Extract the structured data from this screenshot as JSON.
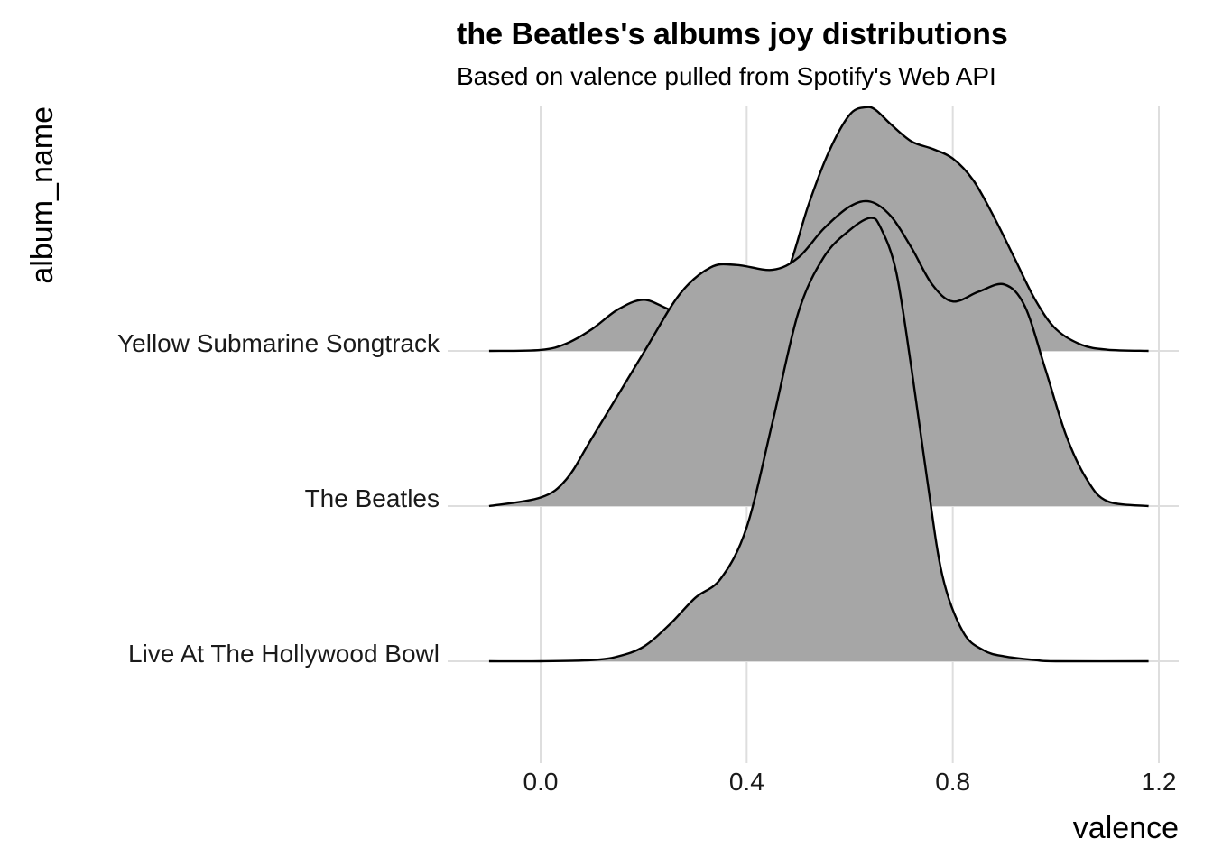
{
  "chart_data": {
    "type": "ridgeline",
    "title": "the Beatles's albums joy distributions",
    "subtitle": "Based on valence pulled from Spotify's Web API",
    "xlabel": "valence",
    "ylabel": "album_name",
    "xlim": [
      -0.1,
      1.18
    ],
    "x_ticks": [
      0.0,
      0.4,
      0.8,
      1.2
    ],
    "x_tick_labels": [
      "0.0",
      "0.4",
      "0.8",
      "1.2"
    ],
    "grid": true,
    "legend": "none",
    "fill_color": "#a6a6a6",
    "line_color": "#000000",
    "grid_color": "#dedede",
    "categories": [
      "Yellow Submarine Songtrack",
      "The Beatles",
      "Live At The Hollywood Bowl"
    ],
    "series": [
      {
        "name": "Yellow Submarine Songtrack",
        "x": [
          -0.1,
          0.0,
          0.05,
          0.1,
          0.15,
          0.2,
          0.25,
          0.3,
          0.35,
          0.4,
          0.45,
          0.48,
          0.52,
          0.56,
          0.6,
          0.63,
          0.65,
          0.68,
          0.72,
          0.76,
          0.8,
          0.84,
          0.88,
          0.92,
          0.96,
          1.0,
          1.05,
          1.1,
          1.18
        ],
        "density": [
          0.0,
          0.004,
          0.03,
          0.09,
          0.17,
          0.21,
          0.17,
          0.14,
          0.18,
          0.22,
          0.25,
          0.33,
          0.6,
          0.82,
          0.97,
          1.0,
          0.99,
          0.93,
          0.86,
          0.83,
          0.79,
          0.7,
          0.55,
          0.38,
          0.21,
          0.09,
          0.025,
          0.005,
          0.0
        ]
      },
      {
        "name": "The Beatles",
        "x": [
          -0.1,
          0.0,
          0.05,
          0.1,
          0.2,
          0.27,
          0.33,
          0.38,
          0.45,
          0.5,
          0.55,
          0.6,
          0.64,
          0.68,
          0.72,
          0.76,
          0.8,
          0.85,
          0.9,
          0.94,
          0.98,
          1.02,
          1.06,
          1.1,
          1.18
        ],
        "density": [
          0.0,
          0.035,
          0.11,
          0.28,
          0.63,
          0.87,
          0.98,
          0.99,
          0.97,
          1.02,
          1.14,
          1.23,
          1.25,
          1.19,
          1.06,
          0.91,
          0.84,
          0.88,
          0.91,
          0.82,
          0.56,
          0.29,
          0.11,
          0.02,
          0.0
        ]
      },
      {
        "name": "Live At The Hollywood Bowl",
        "x": [
          -0.1,
          0.0,
          0.1,
          0.15,
          0.2,
          0.25,
          0.3,
          0.35,
          0.4,
          0.45,
          0.5,
          0.55,
          0.6,
          0.64,
          0.66,
          0.69,
          0.72,
          0.75,
          0.78,
          0.82,
          0.86,
          0.9,
          0.96,
          1.0,
          1.18
        ],
        "density": [
          0.0,
          0.0,
          0.005,
          0.02,
          0.06,
          0.15,
          0.26,
          0.34,
          0.55,
          0.98,
          1.43,
          1.66,
          1.77,
          1.82,
          1.78,
          1.6,
          1.2,
          0.75,
          0.35,
          0.12,
          0.045,
          0.02,
          0.005,
          0.0,
          0.0
        ]
      }
    ]
  }
}
